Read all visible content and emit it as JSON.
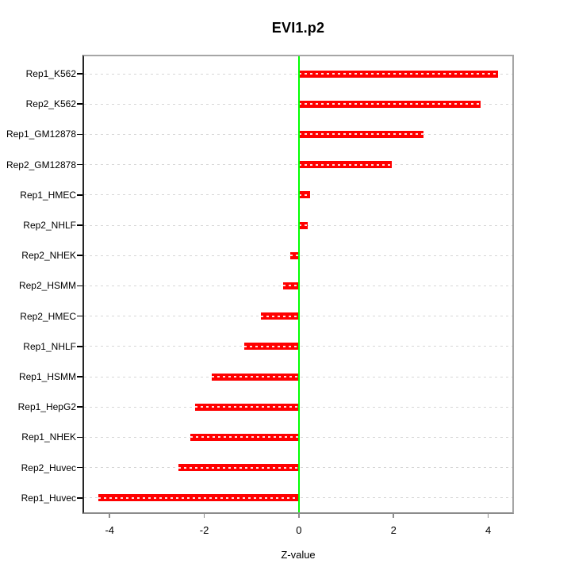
{
  "title": "EVI1.p2",
  "chart_data": {
    "type": "bar",
    "orientation": "horizontal",
    "title": "EVI1.p2",
    "xlabel": "Z-value",
    "categories": [
      "Rep1_K562",
      "Rep2_K562",
      "Rep1_GM12878",
      "Rep2_GM12878",
      "Rep1_HMEC",
      "Rep2_NHLF",
      "Rep2_NHEK",
      "Rep2_HSMM",
      "Rep2_HMEC",
      "Rep1_NHLF",
      "Rep1_HSMM",
      "Rep1_HepG2",
      "Rep1_NHEK",
      "Rep2_Huvec",
      "Rep1_Huvec"
    ],
    "values": [
      4.21,
      3.84,
      2.64,
      1.97,
      0.24,
      0.18,
      -0.18,
      -0.33,
      -0.81,
      -1.16,
      -1.85,
      -2.19,
      -2.29,
      -2.54,
      -4.24
    ],
    "x_ticks": [
      -4,
      -2,
      0,
      2,
      4
    ],
    "x_tick_labels": [
      "-4",
      "-2",
      "0",
      "2",
      "4"
    ],
    "xlim": [
      -4.54,
      4.51
    ],
    "grid": "dashed-horizontal",
    "legend": "none",
    "colors": {
      "bar": "#ff0000",
      "bar_dash": "rgba(255,255,255,0.88)",
      "zero_line": "#00ff00",
      "gridline": "#d6d6d6",
      "box_border": "#a6a6a6",
      "axis_tick_x": "#8c8c8c",
      "axis_tick_y": "#000000",
      "text": "#000000"
    }
  }
}
